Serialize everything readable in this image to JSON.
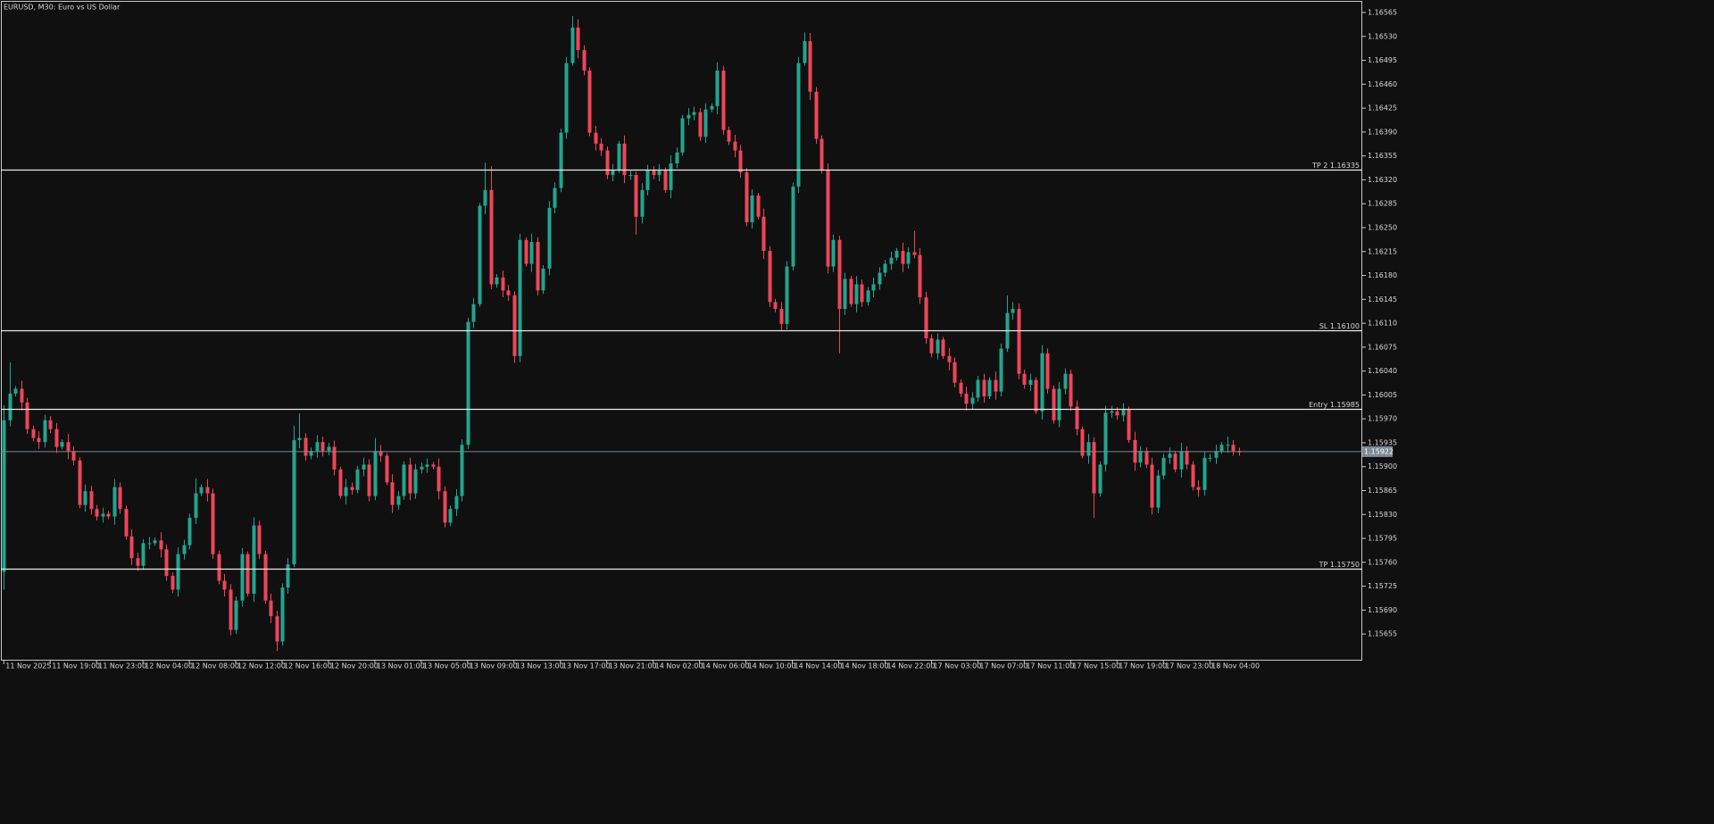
{
  "chart_data": {
    "type": "candlestick",
    "title": "EURUSD, M30:  Euro vs US Dollar",
    "up_color": "#22a58f",
    "down_color": "#f0455a",
    "level_color": "#e8e8e8",
    "price_line_color": "#7d8a96",
    "xlim": [
      -0.5,
      234.3
    ],
    "xticks": [
      {
        "value": 0,
        "label": "11 Nov 2025"
      },
      {
        "value": 8,
        "label": "11 Nov 19:00"
      },
      {
        "value": 16,
        "label": "11 Nov 23:00"
      },
      {
        "value": 24,
        "label": "12 Nov 04:00"
      },
      {
        "value": 32,
        "label": "12 Nov 08:00"
      },
      {
        "value": 40,
        "label": "12 Nov 12:00"
      },
      {
        "value": 48,
        "label": "12 Nov 16:00"
      },
      {
        "value": 56,
        "label": "12 Nov 20:00"
      },
      {
        "value": 64,
        "label": "13 Nov 01:00"
      },
      {
        "value": 72,
        "label": "13 Nov 05:00"
      },
      {
        "value": 80,
        "label": "13 Nov 09:00"
      },
      {
        "value": 88,
        "label": "13 Nov 13:00"
      },
      {
        "value": 96,
        "label": "13 Nov 17:00"
      },
      {
        "value": 104,
        "label": "13 Nov 21:00"
      },
      {
        "value": 112,
        "label": "14 Nov 02:00"
      },
      {
        "value": 120,
        "label": "14 Nov 06:00"
      },
      {
        "value": 128,
        "label": "14 Nov 10:00"
      },
      {
        "value": 136,
        "label": "14 Nov 14:00"
      },
      {
        "value": 144,
        "label": "14 Nov 18:00"
      },
      {
        "value": 152,
        "label": "14 Nov 22:00"
      },
      {
        "value": 160,
        "label": "17 Nov 03:00"
      },
      {
        "value": 168,
        "label": "17 Nov 07:00"
      },
      {
        "value": 176,
        "label": "17 Nov 11:00"
      },
      {
        "value": 184,
        "label": "17 Nov 15:00"
      },
      {
        "value": 192,
        "label": "17 Nov 19:00"
      },
      {
        "value": 200,
        "label": "17 Nov 23:00"
      },
      {
        "value": 208,
        "label": "18 Nov 04:00"
      }
    ],
    "ylim": [
      1.15616,
      1.16582
    ],
    "yticks": [
      1.16565,
      {
        "value": 1.1653,
        "label": "1.16530"
      },
      1.16495,
      {
        "value": 1.1646,
        "label": "1.16460"
      },
      1.16425,
      {
        "value": 1.1639,
        "label": "1.16390"
      },
      1.16355,
      {
        "value": 1.1632,
        "label": "1.16320"
      },
      1.16285,
      {
        "value": 1.1625,
        "label": "1.16250"
      },
      1.16215,
      {
        "value": 1.1618,
        "label": "1.16180"
      },
      1.16145,
      {
        "value": 1.1611,
        "label": "1.16110"
      },
      1.16075,
      {
        "value": 1.1604,
        "label": "1.16040"
      },
      1.16005,
      {
        "value": 1.1597,
        "label": "1.15970"
      },
      1.15935,
      {
        "value": 1.159,
        "label": "1.15900"
      },
      1.15865,
      {
        "value": 1.1583,
        "label": "1.15830"
      },
      1.15795,
      {
        "value": 1.1576,
        "label": "1.15760"
      },
      1.15725,
      {
        "value": 1.1569,
        "label": "1.15690"
      },
      1.15655
    ],
    "levels": [
      {
        "value": 1.16335,
        "label": "TP 2 1.16335"
      },
      {
        "value": 1.161,
        "label": "SL 1.16100"
      },
      {
        "value": 1.15985,
        "label": "Entry 1.15985"
      },
      {
        "value": 1.1575,
        "label": "TP 1.15750"
      }
    ],
    "current_price": 1.15922,
    "open": [
      1.15746,
      1.15968,
      1.16007,
      1.16014,
      1.15994,
      1.15955,
      1.15942,
      1.15936,
      1.15968,
      1.15955,
      1.15929,
      1.15936,
      1.15923,
      1.15909,
      1.15844,
      1.15864,
      1.15838,
      1.15827,
      1.15831,
      1.15827,
      1.1587,
      1.15838,
      1.15798,
      1.15766,
      1.15755,
      1.15788,
      1.15788,
      1.15792,
      1.15779,
      1.1574,
      1.1572,
      1.15772,
      1.15785,
      1.15825,
      1.15861,
      1.1587,
      1.15861,
      1.15772,
      1.15733,
      1.1572,
      1.15661,
      1.15704,
      1.15772,
      1.15714,
      1.15814,
      1.15772,
      1.15704,
      1.15681,
      1.15644,
      1.15723,
      1.15757,
      1.15939,
      1.15942,
      1.15916,
      1.15923,
      1.15936,
      1.15923,
      1.15929,
      1.15896,
      1.15857,
      1.1587,
      1.15866,
      1.15896,
      1.15903,
      1.15857,
      1.15923,
      1.15916,
      1.15877,
      1.15844,
      1.15857,
      1.15903,
      1.15861,
      1.15896,
      1.159,
      1.15903,
      1.159,
      1.15864,
      1.15818,
      1.15838,
      1.15857,
      1.15932,
      1.16112,
      1.16138,
      1.16282,
      1.16305,
      1.16167,
      1.16177,
      1.16158,
      1.16151,
      1.16062,
      1.16232,
      1.16197,
      1.16229,
      1.16158,
      1.1619,
      1.16279,
      1.16308,
      1.16389,
      1.16491,
      1.16543,
      1.1651,
      1.1648,
      1.16389,
      1.16373,
      1.16363,
      1.16327,
      1.16334,
      1.16373,
      1.16327,
      1.16327,
      1.16266,
      1.16305,
      1.16334,
      1.16327,
      1.16334,
      1.16305,
      1.16344,
      1.1636,
      1.1641,
      1.16415,
      1.16419,
      1.16383,
      1.16423,
      1.16428,
      1.1648,
      1.16393,
      1.16376,
      1.16363,
      1.16331,
      1.16258,
      1.16297,
      1.16266,
      1.16216,
      1.16141,
      1.16131,
      1.16109,
      1.16193,
      1.1631,
      1.16491,
      1.16523,
      1.16449,
      1.1638,
      1.16334,
      1.16193,
      1.16232,
      1.16131,
      1.16175,
      1.16138,
      1.16167,
      1.16141,
      1.16158,
      1.16167,
      1.16184,
      1.16197,
      1.16206,
      1.16216,
      1.16197,
      1.16214,
      1.1621,
      1.16148,
      1.16088,
      1.16066,
      1.16086,
      1.16062,
      1.16053,
      1.16023,
      1.16007,
      1.15992,
      1.16001,
      1.16027,
      1.16003,
      1.16027,
      1.1601,
      1.16073,
      1.16125,
      1.16131,
      1.16036,
      1.1602,
      1.16027,
      1.15981,
      1.16066,
      1.16014,
      1.15968,
      1.16014,
      1.16036,
      1.15988,
      1.15955,
      1.15916,
      1.15936,
      1.15861,
      1.15903,
      1.15979,
      1.15981,
      1.15975,
      1.15984,
      1.15939,
      1.15906,
      1.15923,
      1.15903,
      1.1584,
      1.15887,
      1.15913,
      1.15919,
      1.15896,
      1.15923,
      1.15903,
      1.1587,
      1.15866,
      1.15913,
      1.15913,
      1.15923,
      1.15932,
      1.15932,
      1.15923
    ],
    "high": [
      1.1599,
      1.16053,
      1.16018,
      1.16026,
      1.16001,
      1.1596,
      1.15952,
      1.15976,
      1.15974,
      1.15964,
      1.1594,
      1.15948,
      1.1593,
      1.15914,
      1.15874,
      1.15872,
      1.15844,
      1.1584,
      1.15835,
      1.15882,
      1.15877,
      1.15843,
      1.15808,
      1.15774,
      1.15794,
      1.15797,
      1.15796,
      1.15804,
      1.15786,
      1.15745,
      1.15782,
      1.15793,
      1.15831,
      1.15883,
      1.15874,
      1.15882,
      1.15868,
      1.15777,
      1.15743,
      1.15728,
      1.1571,
      1.15781,
      1.15776,
      1.15826,
      1.15821,
      1.15777,
      1.15714,
      1.15689,
      1.15729,
      1.15766,
      1.1596,
      1.15978,
      1.15949,
      1.15928,
      1.15946,
      1.15944,
      1.15935,
      1.15938,
      1.159,
      1.15882,
      1.15877,
      1.15901,
      1.15913,
      1.15911,
      1.15942,
      1.15932,
      1.1592,
      1.15889,
      1.15864,
      1.15908,
      1.15913,
      1.15904,
      1.15906,
      1.15912,
      1.15907,
      1.15912,
      1.15871,
      1.15843,
      1.15867,
      1.1594,
      1.16118,
      1.16147,
      1.16286,
      1.16345,
      1.1634,
      1.16182,
      1.16187,
      1.16166,
      1.16157,
      1.16241,
      1.16236,
      1.16241,
      1.16236,
      1.16195,
      1.16289,
      1.16316,
      1.16395,
      1.165,
      1.1656,
      1.16555,
      1.16517,
      1.16485,
      1.16399,
      1.16381,
      1.16369,
      1.16343,
      1.16377,
      1.16385,
      1.16334,
      1.16332,
      1.16315,
      1.16342,
      1.1634,
      1.16343,
      1.16338,
      1.16356,
      1.16367,
      1.16415,
      1.16425,
      1.16427,
      1.16425,
      1.16432,
      1.16432,
      1.16492,
      1.16487,
      1.16398,
      1.16386,
      1.16371,
      1.16337,
      1.16306,
      1.16301,
      1.16278,
      1.16223,
      1.16146,
      1.16141,
      1.16201,
      1.16316,
      1.165,
      1.16536,
      1.16535,
      1.16456,
      1.16385,
      1.16344,
      1.1624,
      1.16238,
      1.16184,
      1.16179,
      1.16179,
      1.16174,
      1.16163,
      1.16177,
      1.16192,
      1.16203,
      1.16215,
      1.1622,
      1.16228,
      1.16221,
      1.16245,
      1.1622,
      1.16156,
      1.16094,
      1.16095,
      1.1609,
      1.16074,
      1.1606,
      1.16028,
      1.16017,
      1.16009,
      1.16033,
      1.16036,
      1.16031,
      1.16039,
      1.1608,
      1.16151,
      1.16141,
      1.16139,
      1.16042,
      1.16036,
      1.16031,
      1.16078,
      1.16073,
      1.16019,
      1.16024,
      1.16044,
      1.16042,
      1.15997,
      1.15959,
      1.15948,
      1.15943,
      1.15908,
      1.15989,
      1.15989,
      1.15987,
      1.15993,
      1.15988,
      1.15951,
      1.1593,
      1.15928,
      1.15913,
      1.15895,
      1.15919,
      1.15928,
      1.15923,
      1.15935,
      1.1593,
      1.15908,
      1.1588,
      1.15921,
      1.15919,
      1.15932,
      1.15936,
      1.15944,
      1.15939,
      1.15928
    ],
    "low": [
      1.1572,
      1.15959,
      1.16003,
      1.15982,
      1.15948,
      1.15937,
      1.15926,
      1.15928,
      1.15949,
      1.1592,
      1.15925,
      1.15911,
      1.15902,
      1.15839,
      1.15834,
      1.1583,
      1.15821,
      1.15818,
      1.15823,
      1.15815,
      1.15831,
      1.15793,
      1.15756,
      1.15747,
      1.15749,
      1.15779,
      1.15784,
      1.15767,
      1.15733,
      1.15715,
      1.1571,
      1.15764,
      1.15779,
      1.15816,
      1.15857,
      1.15849,
      1.15765,
      1.15728,
      1.1571,
      1.15653,
      1.15655,
      1.15695,
      1.1571,
      1.15702,
      1.15765,
      1.15699,
      1.15671,
      1.1563,
      1.15638,
      1.15714,
      1.15753,
      1.15927,
      1.15909,
      1.15911,
      1.15913,
      1.15915,
      1.15917,
      1.15887,
      1.15853,
      1.15845,
      1.15859,
      1.15861,
      1.15886,
      1.15849,
      1.15851,
      1.15907,
      1.15873,
      1.15832,
      1.15837,
      1.15852,
      1.15851,
      1.15853,
      1.1589,
      1.15891,
      1.15896,
      1.15852,
      1.15811,
      1.15813,
      1.15828,
      1.15849,
      1.15926,
      1.16103,
      1.16134,
      1.1627,
      1.1616,
      1.16162,
      1.16148,
      1.16143,
      1.16052,
      1.16053,
      1.16193,
      1.16185,
      1.16151,
      1.16153,
      1.1618,
      1.16271,
      1.16302,
      1.1638,
      1.16487,
      1.16498,
      1.16473,
      1.16384,
      1.16363,
      1.16355,
      1.16321,
      1.16318,
      1.1633,
      1.16315,
      1.1632,
      1.1624,
      1.16256,
      1.16297,
      1.16321,
      1.16318,
      1.16301,
      1.16293,
      1.16337,
      1.16355,
      1.164,
      1.16407,
      1.16377,
      1.16374,
      1.16419,
      1.16416,
      1.16386,
      1.16371,
      1.16353,
      1.16323,
      1.16252,
      1.16249,
      1.16262,
      1.16204,
      1.16134,
      1.16126,
      1.16099,
      1.16101,
      1.16187,
      1.16301,
      1.16487,
      1.16437,
      1.16373,
      1.16329,
      1.16183,
      1.16185,
      1.16066,
      1.16122,
      1.16134,
      1.16126,
      1.16134,
      1.16136,
      1.16148,
      1.16159,
      1.16178,
      1.16188,
      1.16202,
      1.16185,
      1.1619,
      1.16205,
      1.16138,
      1.1608,
      1.1606,
      1.16057,
      1.16058,
      1.16041,
      1.16016,
      1.16002,
      1.15982,
      1.15984,
      1.15995,
      1.15994,
      1.15999,
      1.15998,
      1.16003,
      1.16068,
      1.16115,
      1.16028,
      1.16014,
      1.16011,
      1.15977,
      1.15969,
      1.16007,
      1.15963,
      1.15958,
      1.16006,
      1.15982,
      1.15946,
      1.15912,
      1.15904,
      1.15825,
      1.15856,
      1.15893,
      1.15971,
      1.15969,
      1.15966,
      1.15935,
      1.15894,
      1.15899,
      1.15898,
      1.1583,
      1.15832,
      1.15881,
      1.15904,
      1.15892,
      1.15884,
      1.15896,
      1.15865,
      1.15856,
      1.15858,
      1.15907,
      1.15904,
      1.15919,
      1.1592,
      1.15916,
      1.15916
    ],
    "close": [
      1.15968,
      1.16007,
      1.16014,
      1.15994,
      1.15955,
      1.15942,
      1.15936,
      1.15968,
      1.15955,
      1.15929,
      1.15936,
      1.15923,
      1.15909,
      1.15844,
      1.15864,
      1.15838,
      1.15827,
      1.15831,
      1.15827,
      1.1587,
      1.15838,
      1.15798,
      1.15766,
      1.15755,
      1.15788,
      1.15788,
      1.15792,
      1.15779,
      1.1574,
      1.1572,
      1.15772,
      1.15785,
      1.15825,
      1.15861,
      1.1587,
      1.15861,
      1.15772,
      1.15733,
      1.1572,
      1.15661,
      1.15704,
      1.15772,
      1.15714,
      1.15814,
      1.15772,
      1.15704,
      1.15681,
      1.15644,
      1.15723,
      1.15757,
      1.15939,
      1.15942,
      1.15916,
      1.15923,
      1.15936,
      1.15923,
      1.15929,
      1.15896,
      1.15857,
      1.1587,
      1.15866,
      1.15896,
      1.15903,
      1.15857,
      1.15923,
      1.15916,
      1.15877,
      1.15844,
      1.15857,
      1.15903,
      1.15861,
      1.15896,
      1.159,
      1.15903,
      1.159,
      1.15864,
      1.15818,
      1.15838,
      1.15857,
      1.15932,
      1.16112,
      1.16138,
      1.16282,
      1.16305,
      1.16167,
      1.16177,
      1.16158,
      1.16151,
      1.16062,
      1.16232,
      1.16197,
      1.16229,
      1.16158,
      1.1619,
      1.16279,
      1.16308,
      1.16389,
      1.16491,
      1.16543,
      1.1651,
      1.1648,
      1.16389,
      1.16373,
      1.16363,
      1.16327,
      1.16334,
      1.16373,
      1.16327,
      1.16327,
      1.16266,
      1.16305,
      1.16334,
      1.16327,
      1.16334,
      1.16305,
      1.16344,
      1.1636,
      1.1641,
      1.16415,
      1.16419,
      1.16383,
      1.16423,
      1.16428,
      1.1648,
      1.16393,
      1.16376,
      1.16363,
      1.16331,
      1.16258,
      1.16297,
      1.16266,
      1.16216,
      1.16141,
      1.16131,
      1.16109,
      1.16193,
      1.1631,
      1.16491,
      1.16523,
      1.16449,
      1.1638,
      1.16334,
      1.16193,
      1.16232,
      1.16131,
      1.16175,
      1.16138,
      1.16167,
      1.16141,
      1.16158,
      1.16167,
      1.16184,
      1.16197,
      1.16206,
      1.16216,
      1.16197,
      1.16214,
      1.1621,
      1.16148,
      1.16088,
      1.16066,
      1.16086,
      1.16062,
      1.16053,
      1.16023,
      1.16007,
      1.15992,
      1.16001,
      1.16027,
      1.16003,
      1.16027,
      1.1601,
      1.16073,
      1.16125,
      1.16131,
      1.16036,
      1.1602,
      1.16027,
      1.15981,
      1.16066,
      1.16014,
      1.15968,
      1.16014,
      1.16036,
      1.15988,
      1.15955,
      1.15916,
      1.15936,
      1.15861,
      1.15903,
      1.15979,
      1.15981,
      1.15975,
      1.15984,
      1.15939,
      1.15906,
      1.15923,
      1.15903,
      1.1584,
      1.15887,
      1.15913,
      1.15919,
      1.15896,
      1.15923,
      1.15903,
      1.1587,
      1.15866,
      1.15913,
      1.15913,
      1.15923,
      1.15932,
      1.15932,
      1.15923,
      1.15921
    ]
  }
}
